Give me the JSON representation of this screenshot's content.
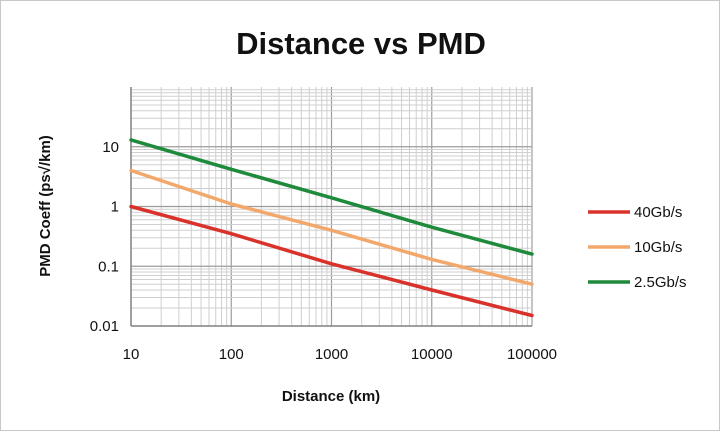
{
  "chart_data": {
    "type": "line",
    "title": "Distance vs PMD",
    "xlabel": "Distance (km)",
    "ylabel": "PMD Coeff (ps√/km)",
    "xscale": "log",
    "yscale": "log",
    "xlim": [
      10,
      100000
    ],
    "ylim": [
      0.01,
      100
    ],
    "x_ticks": [
      10,
      100,
      1000,
      10000,
      100000
    ],
    "x_tick_labels": [
      "10",
      "100",
      "1000",
      "10000",
      "100000"
    ],
    "y_ticks": [
      0.01,
      0.1,
      1,
      10
    ],
    "y_tick_labels": [
      "0.01",
      "0.1",
      "1",
      "10"
    ],
    "grid": true,
    "legend_position": "right",
    "series": [
      {
        "name": "40Gb/s",
        "color": "#d9322b",
        "x": [
          10,
          100,
          1000,
          10000,
          100000
        ],
        "y": [
          1.0,
          0.35,
          0.11,
          0.04,
          0.015
        ]
      },
      {
        "name": "10Gb/s",
        "color": "#f2a76b",
        "x": [
          10,
          100,
          1000,
          10000,
          100000
        ],
        "y": [
          4.0,
          1.1,
          0.4,
          0.13,
          0.05
        ]
      },
      {
        "name": "2.5Gb/s",
        "color": "#1f8a3b",
        "x": [
          10,
          100,
          1000,
          10000,
          100000
        ],
        "y": [
          13.0,
          4.2,
          1.4,
          0.45,
          0.16
        ]
      }
    ]
  }
}
